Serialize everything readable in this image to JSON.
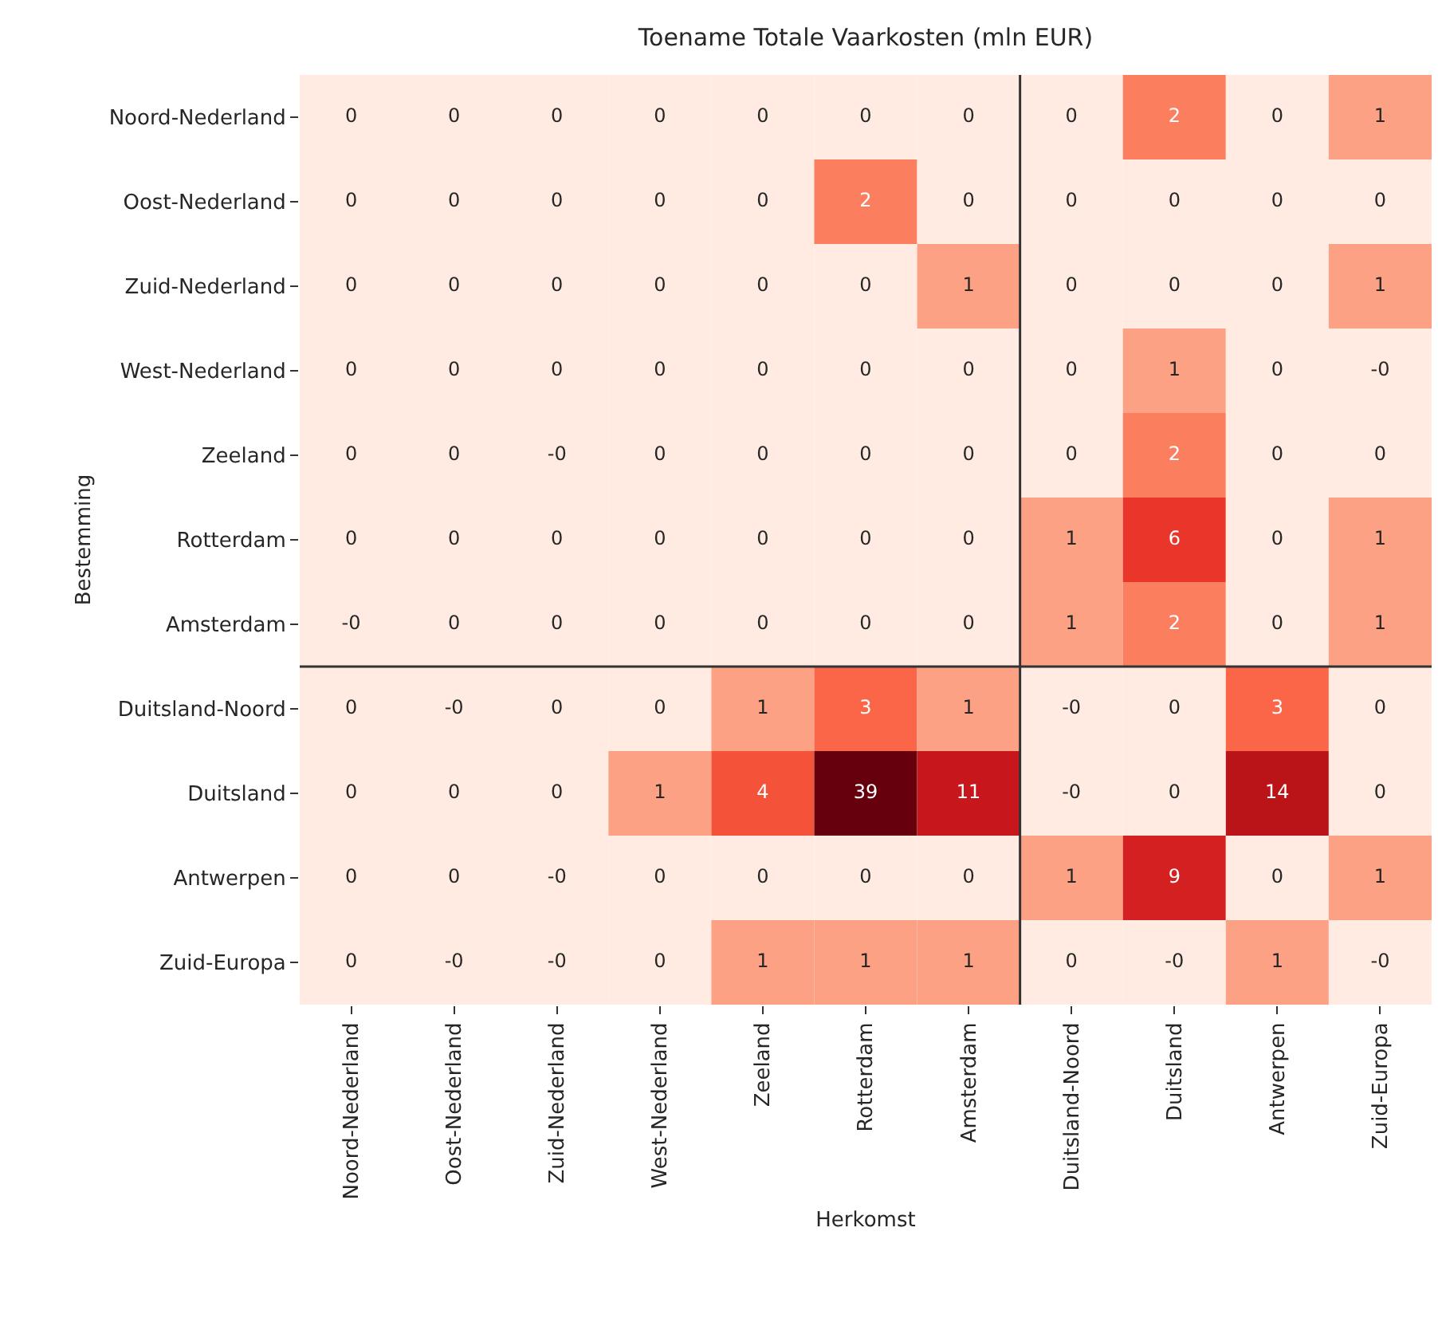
{
  "chart_data": {
    "type": "heatmap",
    "title": "Toename Totale Vaarkosten (mln EUR)",
    "xlabel": "Herkomst",
    "ylabel": "Bestemming",
    "categories": [
      "Noord-Nederland",
      "Oost-Nederland",
      "Zuid-Nederland",
      "West-Nederland",
      "Zeeland",
      "Rotterdam",
      "Amsterdam",
      "Duitsland-Noord",
      "Duitsland",
      "Antwerpen",
      "Zuid-Europa"
    ],
    "y_categories": [
      "Noord-Nederland",
      "Oost-Nederland",
      "Zuid-Nederland",
      "West-Nederland",
      "Zeeland",
      "Rotterdam",
      "Amsterdam",
      "Duitsland-Noord",
      "Duitsland",
      "Antwerpen",
      "Zuid-Europa"
    ],
    "cells": [
      [
        0,
        0,
        0,
        0,
        0,
        0,
        0,
        0,
        2,
        0,
        1
      ],
      [
        0,
        0,
        0,
        0,
        0,
        2,
        0,
        0,
        0,
        0,
        0
      ],
      [
        0,
        0,
        0,
        0,
        0,
        0,
        1,
        0,
        0,
        0,
        1
      ],
      [
        0,
        0,
        0,
        0,
        0,
        0,
        0,
        0,
        1,
        0,
        0
      ],
      [
        0,
        0,
        0,
        0,
        0,
        0,
        0,
        0,
        2,
        0,
        0
      ],
      [
        0,
        0,
        0,
        0,
        0,
        0,
        0,
        1,
        6,
        0,
        1
      ],
      [
        0,
        0,
        0,
        0,
        0,
        0,
        0,
        1,
        2,
        0,
        1
      ],
      [
        0,
        0,
        0,
        0,
        1,
        3,
        1,
        0,
        0,
        3,
        0
      ],
      [
        0,
        0,
        0,
        1,
        4,
        39,
        11,
        0,
        0,
        14,
        0
      ],
      [
        0,
        0,
        0,
        0,
        0,
        0,
        0,
        1,
        9,
        0,
        1
      ],
      [
        0,
        0,
        0,
        0,
        1,
        1,
        1,
        0,
        0,
        1,
        0
      ]
    ],
    "cell_labels": [
      [
        "0",
        "0",
        "0",
        "0",
        "0",
        "0",
        "0",
        "0",
        "2",
        "0",
        "1"
      ],
      [
        "0",
        "0",
        "0",
        "0",
        "0",
        "2",
        "0",
        "0",
        "0",
        "0",
        "0"
      ],
      [
        "0",
        "0",
        "0",
        "0",
        "0",
        "0",
        "1",
        "0",
        "0",
        "0",
        "1"
      ],
      [
        "0",
        "0",
        "0",
        "0",
        "0",
        "0",
        "0",
        "0",
        "1",
        "0",
        "-0"
      ],
      [
        "0",
        "0",
        "-0",
        "0",
        "0",
        "0",
        "0",
        "0",
        "2",
        "0",
        "0"
      ],
      [
        "0",
        "0",
        "0",
        "0",
        "0",
        "0",
        "0",
        "1",
        "6",
        "0",
        "1"
      ],
      [
        "-0",
        "0",
        "0",
        "0",
        "0",
        "0",
        "0",
        "1",
        "2",
        "0",
        "1"
      ],
      [
        "0",
        "-0",
        "0",
        "0",
        "1",
        "3",
        "1",
        "-0",
        "0",
        "3",
        "0"
      ],
      [
        "0",
        "0",
        "0",
        "1",
        "4",
        "39",
        "11",
        "-0",
        "0",
        "14",
        "0"
      ],
      [
        "0",
        "0",
        "-0",
        "0",
        "0",
        "0",
        "0",
        "1",
        "9",
        "0",
        "1"
      ],
      [
        "0",
        "-0",
        "-0",
        "0",
        "1",
        "1",
        "1",
        "0",
        "-0",
        "1",
        "-0"
      ]
    ],
    "grid": false
  }
}
